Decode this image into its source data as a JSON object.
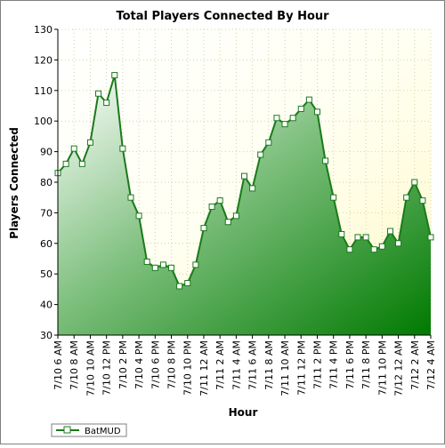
{
  "chart_data": {
    "type": "area",
    "title": "Total Players Connected By Hour",
    "xlabel": "Hour",
    "ylabel": "Players Connected",
    "ylim": [
      30,
      130
    ],
    "yticks": [
      30,
      40,
      50,
      60,
      70,
      80,
      90,
      100,
      110,
      120,
      130
    ],
    "grid": true,
    "legend": "bottom-left",
    "colors": {
      "line": "#1a7a1a",
      "fill_top": "#ffffff",
      "fill_bottom": "#007a00",
      "plot_bg_top": "#fffbe0",
      "plot_bg_bottom": "#fffff0",
      "grid": "#d8d8b8"
    },
    "x_tick_labels": [
      "7/10 6 AM",
      "7/10 8 AM",
      "7/10 10 AM",
      "7/10 12 PM",
      "7/10 2 PM",
      "7/10 4 PM",
      "7/10 6 PM",
      "7/10 8 PM",
      "7/10 10 PM",
      "7/11 12 AM",
      "7/11 2 AM",
      "7/11 4 AM",
      "7/11 6 AM",
      "7/11 8 AM",
      "7/11 10 AM",
      "7/11 12 PM",
      "7/11 2 PM",
      "7/11 4 PM",
      "7/11 6 PM",
      "7/11 8 PM",
      "7/11 10 PM",
      "7/12 12 AM",
      "7/12 2 AM",
      "7/12 4 AM"
    ],
    "series": [
      {
        "name": "BatMUD",
        "values": [
          83,
          86,
          91,
          86,
          93,
          109,
          106,
          115,
          91,
          75,
          69,
          54,
          52,
          53,
          52,
          46,
          47,
          53,
          65,
          72,
          74,
          67,
          69,
          82,
          78,
          89,
          93,
          101,
          99,
          101,
          104,
          107,
          103,
          87,
          75,
          63,
          58,
          62,
          62,
          58,
          59,
          64,
          60,
          75,
          80,
          74,
          62
        ]
      }
    ]
  }
}
